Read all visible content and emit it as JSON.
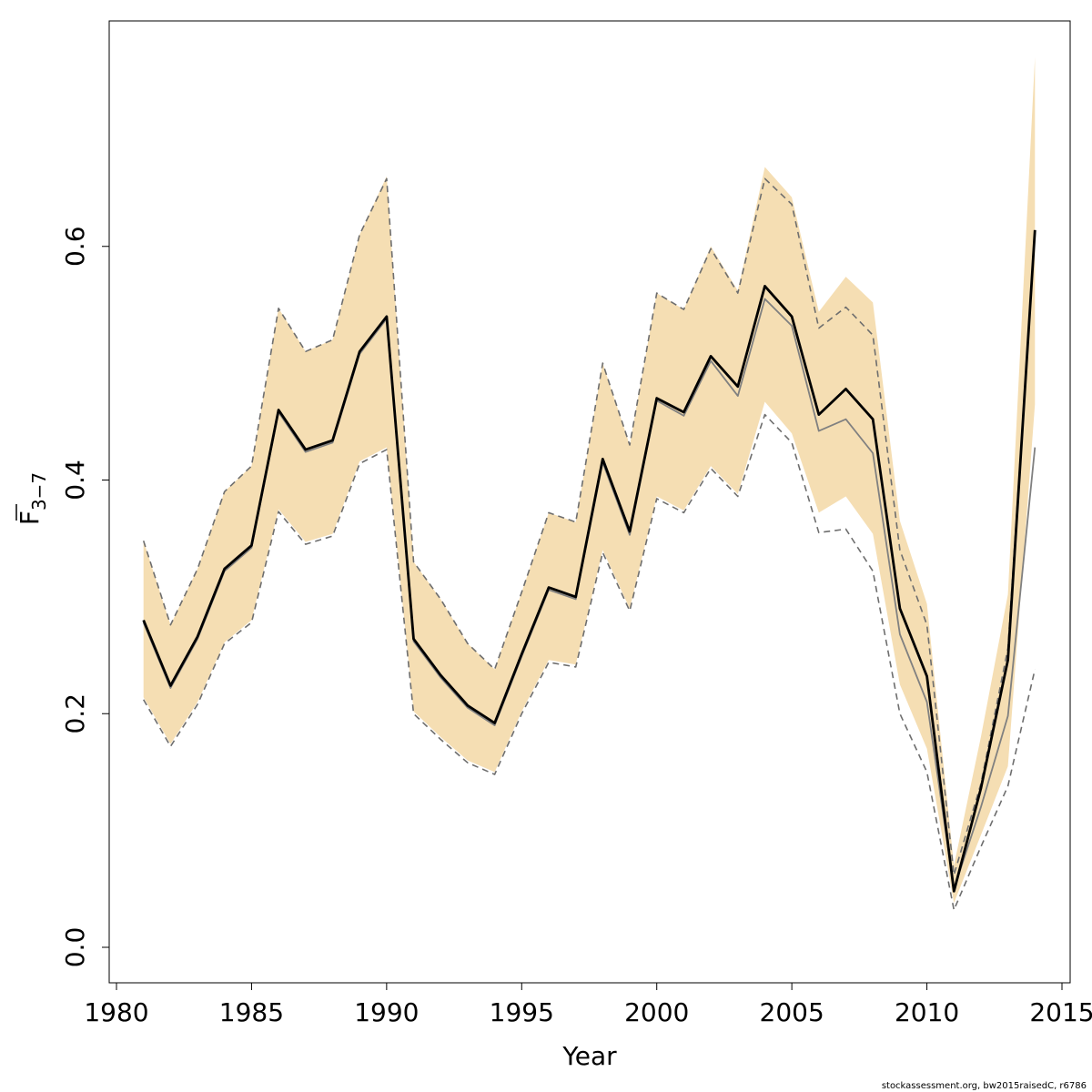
{
  "chart_data": {
    "type": "line",
    "title": "",
    "xlabel": "Year",
    "ylabel": {
      "main": "F",
      "subscript": "3−7"
    },
    "xlim": [
      1980,
      2015
    ],
    "ylim": [
      0.0,
      0.8
    ],
    "x_ticks": [
      "1980",
      "1985",
      "1990",
      "1995",
      "2000",
      "2005",
      "2010",
      "2015"
    ],
    "y_ticks": [
      "0.0",
      "0.2",
      "0.4",
      "0.6"
    ],
    "grid": false,
    "legend": "none",
    "colors": {
      "band": "#f5deb3",
      "estimate": "#000000",
      "retro": "#808080",
      "retro_ci": "#6e6e6e",
      "axis": "#000000"
    },
    "x": [
      1981,
      1982,
      1983,
      1984,
      1985,
      1986,
      1987,
      1988,
      1989,
      1990,
      1991,
      1992,
      1993,
      1994,
      1995,
      1996,
      1997,
      1998,
      1999,
      2000,
      2001,
      2002,
      2003,
      2004,
      2005,
      2006,
      2007,
      2008,
      2009,
      2010,
      2011,
      2012,
      2013,
      2014
    ],
    "series": [
      {
        "role": "band",
        "lower": [
          0.214,
          0.174,
          0.21,
          0.261,
          0.28,
          0.375,
          0.347,
          0.354,
          0.416,
          0.428,
          0.202,
          0.18,
          0.16,
          0.15,
          0.202,
          0.246,
          0.242,
          0.34,
          0.29,
          0.386,
          0.374,
          0.412,
          0.388,
          0.467,
          0.44,
          0.372,
          0.386,
          0.354,
          0.225,
          0.17,
          0.038,
          0.096,
          0.155,
          0.465
        ],
        "upper": [
          0.348,
          0.276,
          0.324,
          0.39,
          0.412,
          0.547,
          0.51,
          0.52,
          0.61,
          0.66,
          0.33,
          0.298,
          0.26,
          0.238,
          0.304,
          0.372,
          0.364,
          0.5,
          0.43,
          0.56,
          0.546,
          0.6,
          0.562,
          0.668,
          0.642,
          0.544,
          0.574,
          0.552,
          0.365,
          0.294,
          0.07,
          0.18,
          0.302,
          0.762
        ]
      },
      {
        "role": "retro-estimate",
        "values": [
          0.278,
          0.222,
          0.264,
          0.322,
          0.342,
          0.458,
          0.424,
          0.432,
          0.508,
          0.538,
          0.262,
          0.231,
          0.205,
          0.19,
          0.249,
          0.306,
          0.298,
          0.415,
          0.353,
          0.468,
          0.455,
          0.502,
          0.472,
          0.555,
          0.532,
          0.442,
          0.452,
          0.423,
          0.268,
          0.21,
          0.05,
          0.12,
          0.198,
          0.428
        ]
      },
      {
        "role": "retro-upper",
        "values": [
          0.348,
          0.276,
          0.324,
          0.39,
          0.412,
          0.547,
          0.51,
          0.52,
          0.61,
          0.658,
          0.33,
          0.298,
          0.26,
          0.238,
          0.304,
          0.372,
          0.364,
          0.5,
          0.43,
          0.56,
          0.546,
          0.598,
          0.56,
          0.658,
          0.636,
          0.53,
          0.548,
          0.524,
          0.34,
          0.276,
          0.062,
          0.14,
          0.256,
          0.612
        ]
      },
      {
        "role": "retro-lower",
        "values": [
          0.212,
          0.172,
          0.208,
          0.26,
          0.278,
          0.373,
          0.345,
          0.352,
          0.414,
          0.426,
          0.2,
          0.178,
          0.158,
          0.148,
          0.2,
          0.244,
          0.24,
          0.338,
          0.288,
          0.384,
          0.372,
          0.41,
          0.386,
          0.456,
          0.432,
          0.355,
          0.358,
          0.322,
          0.2,
          0.15,
          0.032,
          0.086,
          0.138,
          0.238
        ]
      },
      {
        "role": "estimate",
        "values": [
          0.28,
          0.224,
          0.266,
          0.324,
          0.344,
          0.46,
          0.426,
          0.434,
          0.51,
          0.54,
          0.264,
          0.233,
          0.207,
          0.192,
          0.251,
          0.308,
          0.3,
          0.418,
          0.356,
          0.47,
          0.458,
          0.506,
          0.48,
          0.566,
          0.54,
          0.456,
          0.478,
          0.452,
          0.29,
          0.232,
          0.048,
          0.136,
          0.246,
          0.614
        ]
      }
    ]
  },
  "footnote": "stockassessment.org, bw2015raisedC, r6786"
}
